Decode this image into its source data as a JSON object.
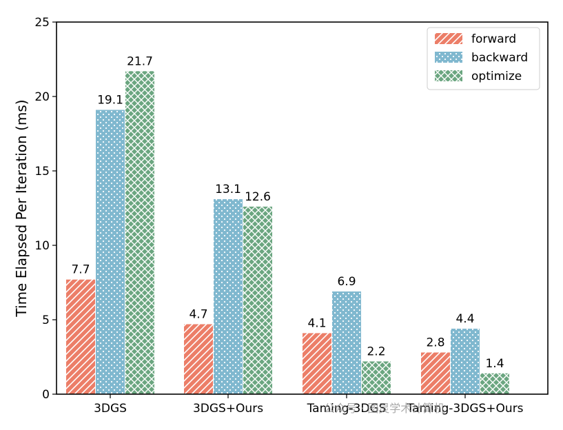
{
  "chart_data": {
    "type": "bar",
    "title": "",
    "xlabel": "",
    "ylabel": "Time Elapsed Per Iteration (ms)",
    "ylim": [
      0,
      25
    ],
    "yticks": [
      0,
      5,
      10,
      15,
      20,
      25
    ],
    "categories": [
      "3DGS",
      "3DGS+Ours",
      "Taming-3DGS",
      "Taming-3DGS+Ours"
    ],
    "series": [
      {
        "name": "forward",
        "values": [
          7.7,
          4.7,
          4.1,
          2.8
        ],
        "color": "#ec7e68",
        "hatch": "diagonal"
      },
      {
        "name": "backward",
        "values": [
          19.1,
          13.1,
          6.9,
          4.4
        ],
        "color": "#80b8cf",
        "hatch": "dots"
      },
      {
        "name": "optimize",
        "values": [
          21.7,
          12.6,
          2.2,
          1.4
        ],
        "color": "#6ba680",
        "hatch": "crosshatch"
      }
    ],
    "data_labels": [
      [
        "7.7",
        "4.7",
        "4.1",
        "2.8"
      ],
      [
        "19.1",
        "13.1",
        "6.9",
        "4.4"
      ],
      [
        "21.7",
        "12.6",
        "2.2",
        "1.4"
      ]
    ],
    "legend_position": "top-right",
    "grid": false
  },
  "watermark": "公众号 · 图灵学术计算机"
}
